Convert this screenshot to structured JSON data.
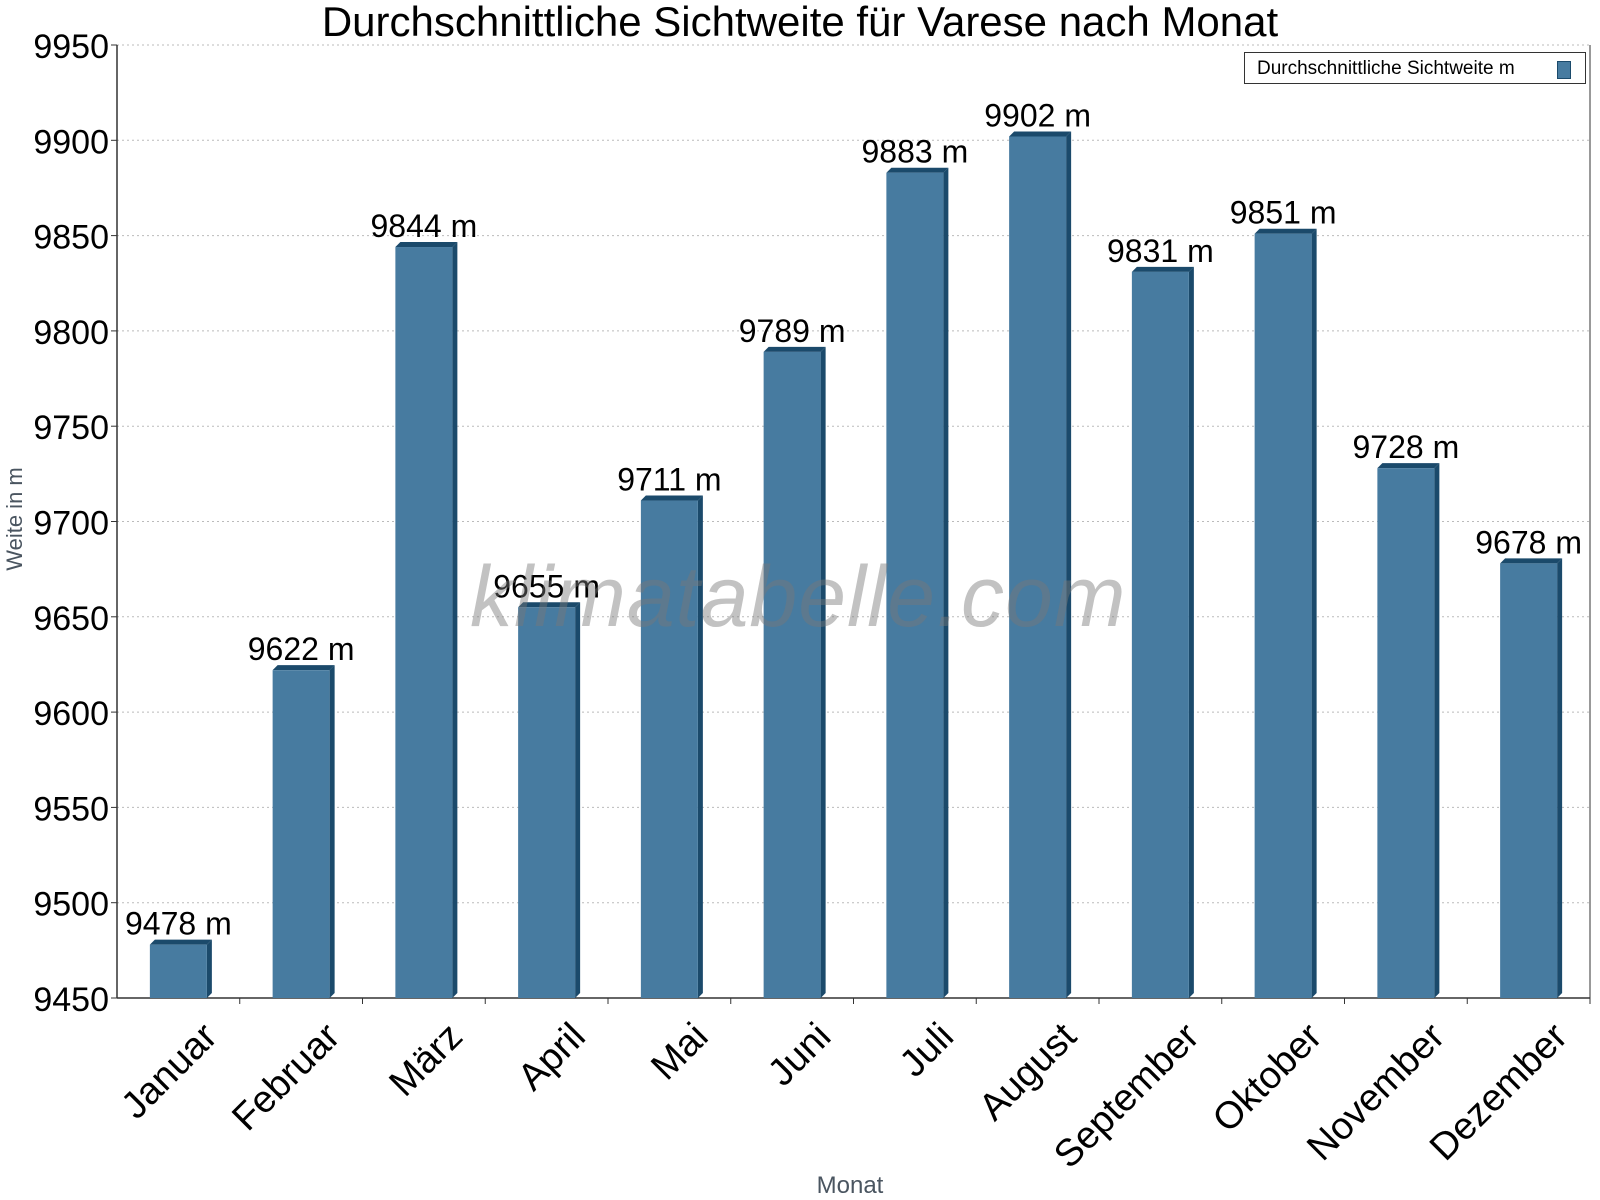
{
  "chart_data": {
    "type": "bar",
    "title": "Durchschnittliche Sichtweite für Varese nach Monat",
    "xlabel": "Monat",
    "ylabel": "Weite in m",
    "categories": [
      "Januar",
      "Februar",
      "März",
      "April",
      "Mai",
      "Juni",
      "Juli",
      "August",
      "September",
      "Oktober",
      "November",
      "Dezember"
    ],
    "series": [
      {
        "name": "Durchschnittliche Sichtweite m",
        "values": [
          9478,
          9622,
          9844,
          9655,
          9711,
          9789,
          9883,
          9902,
          9831,
          9851,
          9728,
          9678
        ],
        "data_labels": [
          "9478 m",
          "9622 m",
          "9844 m",
          "9655 m",
          "9711 m",
          "9789 m",
          "9883 m",
          "9902 m",
          "9831 m",
          "9851 m",
          "9728 m",
          "9678 m"
        ]
      }
    ],
    "ylim": [
      9450,
      9950
    ],
    "yticks": [
      9450,
      9500,
      9550,
      9600,
      9650,
      9700,
      9750,
      9800,
      9850,
      9900,
      9950
    ],
    "ytick_labels": [
      "9450",
      "9500",
      "9550",
      "9600",
      "9650",
      "9700",
      "9750",
      "9800",
      "9850",
      "9900",
      "9950"
    ],
    "grid": true,
    "legend_position": "top-right",
    "colors": {
      "bar": "#477ba0",
      "bar_side": "#1b4a6b",
      "grid": "#bbbbbb",
      "axis": "#333333"
    }
  },
  "watermark": "klimatabelle.com"
}
